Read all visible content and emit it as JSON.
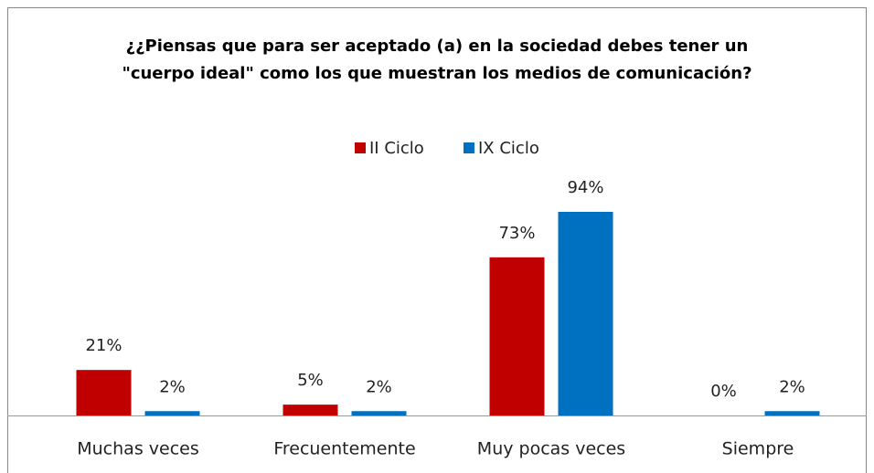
{
  "chart_data": {
    "type": "bar",
    "title": "¿¿Piensas que para ser aceptado (a) en la sociedad debes tener un \"cuerpo ideal\" como los que muestran los medios de comunicación?",
    "categories": [
      "Muchas veces",
      "Frecuentemente",
      "Muy pocas veces",
      "Siempre"
    ],
    "series": [
      {
        "name": "II Ciclo",
        "color": "#c00000",
        "values": [
          21,
          5,
          73,
          0
        ],
        "value_labels": [
          "21%",
          "5%",
          "73%",
          "0%"
        ]
      },
      {
        "name": "IX Ciclo",
        "color": "#0070c0",
        "values": [
          2,
          2,
          94,
          2
        ],
        "value_labels": [
          "2%",
          "2%",
          "94%",
          "2%"
        ]
      }
    ],
    "legend": "top"
  }
}
